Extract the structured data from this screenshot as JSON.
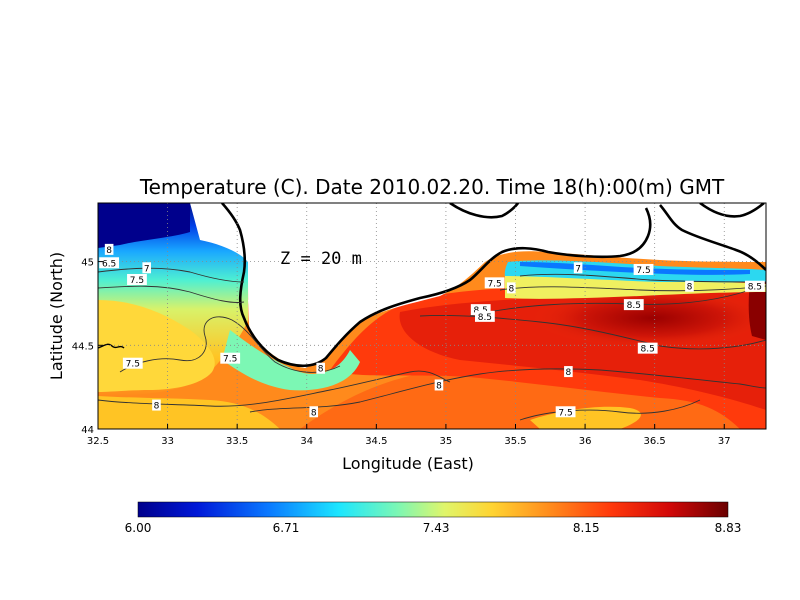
{
  "chart_data": {
    "type": "heatmap",
    "title": "Temperature (C). Date 2010.02.20. Time 18(h):00(m) GMT",
    "xlabel": "Longitude (East)",
    "ylabel": "Latitude (North)",
    "annotation": "Z = 20 m",
    "xlim": [
      32.5,
      37.3
    ],
    "ylim": [
      44.0,
      45.35
    ],
    "xticks": [
      "32.5",
      "33",
      "33.5",
      "34",
      "34.5",
      "35",
      "35.5",
      "36",
      "36.5",
      "37"
    ],
    "xtick_values": [
      32.5,
      33,
      33.5,
      34,
      34.5,
      35,
      35.5,
      36,
      36.5,
      37
    ],
    "yticks": [
      "44",
      "44.5",
      "45"
    ],
    "ytick_values": [
      44.0,
      44.5,
      45.0
    ],
    "grid": true,
    "colorbar": {
      "min": 6.0,
      "max": 8.83,
      "ticks": [
        "6.00",
        "6.71",
        "7.43",
        "8.15",
        "8.83"
      ],
      "tick_values": [
        6.0,
        6.71,
        7.43,
        8.15,
        8.83
      ]
    },
    "contour_labels": [
      {
        "text": "8",
        "lon": 32.58,
        "lat": 45.07
      },
      {
        "text": "6.5",
        "lon": 32.58,
        "lat": 44.99
      },
      {
        "text": "7",
        "lon": 32.85,
        "lat": 44.96
      },
      {
        "text": "7.5",
        "lon": 32.78,
        "lat": 44.89
      },
      {
        "text": "7.5",
        "lon": 32.75,
        "lat": 44.39
      },
      {
        "text": "7.5",
        "lon": 33.45,
        "lat": 44.42
      },
      {
        "text": "8",
        "lon": 32.92,
        "lat": 44.14
      },
      {
        "text": "8",
        "lon": 34.1,
        "lat": 44.36
      },
      {
        "text": "8",
        "lon": 34.05,
        "lat": 44.1
      },
      {
        "text": "8",
        "lon": 34.95,
        "lat": 44.26
      },
      {
        "text": "7.5",
        "lon": 35.35,
        "lat": 44.87
      },
      {
        "text": "8",
        "lon": 35.47,
        "lat": 44.84
      },
      {
        "text": "7",
        "lon": 35.95,
        "lat": 44.96
      },
      {
        "text": "7.5",
        "lon": 36.42,
        "lat": 44.95
      },
      {
        "text": "8",
        "lon": 36.75,
        "lat": 44.85
      },
      {
        "text": "8.5",
        "lon": 37.22,
        "lat": 44.85
      },
      {
        "text": "8.5",
        "lon": 36.35,
        "lat": 44.74
      },
      {
        "text": "8.5",
        "lon": 35.25,
        "lat": 44.71
      },
      {
        "text": "8.5",
        "lon": 35.28,
        "lat": 44.67
      },
      {
        "text": "8.5",
        "lon": 36.45,
        "lat": 44.48
      },
      {
        "text": "8",
        "lon": 35.88,
        "lat": 44.34
      },
      {
        "text": "7.5",
        "lon": 35.86,
        "lat": 44.1
      }
    ]
  }
}
